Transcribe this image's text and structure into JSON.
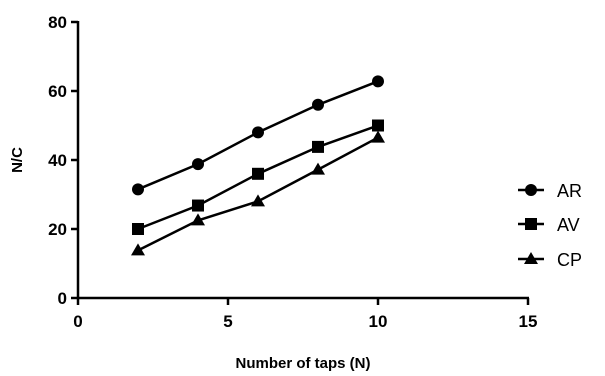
{
  "chart_data": {
    "type": "line",
    "title": "",
    "xlabel": "Number of taps (N)",
    "ylabel": "N/C",
    "xlim": [
      0,
      15
    ],
    "ylim": [
      0,
      80
    ],
    "x_ticks": [
      "0",
      "5",
      "10",
      "15"
    ],
    "y_ticks": [
      "0",
      "20",
      "40",
      "60",
      "80"
    ],
    "grid": false,
    "legend_position": "right",
    "x": [
      2,
      4,
      6,
      8,
      10
    ],
    "series": [
      {
        "name": "AR",
        "marker": "circle",
        "values": [
          31.5,
          38.8,
          48.0,
          56.0,
          62.8
        ]
      },
      {
        "name": "AV",
        "marker": "square",
        "values": [
          20.0,
          26.8,
          36.0,
          43.8,
          50.0
        ]
      },
      {
        "name": "CP",
        "marker": "triangle",
        "values": [
          13.8,
          22.5,
          28.0,
          37.2,
          46.5
        ]
      }
    ]
  }
}
